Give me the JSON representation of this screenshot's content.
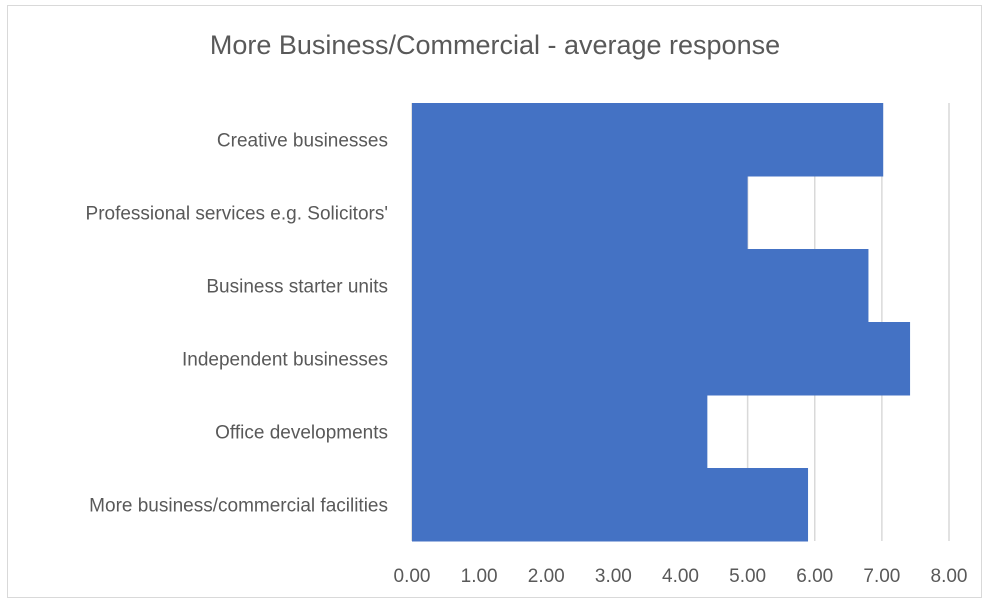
{
  "chart_data": {
    "type": "bar",
    "orientation": "horizontal",
    "title": "More Business/Commercial - average response",
    "categories": [
      "Creative businesses",
      "Professional services e.g. Solicitors'",
      "Business starter units",
      "Independent businesses",
      "Office developments",
      "More business/commercial facilities"
    ],
    "values": [
      7.02,
      5.0,
      6.8,
      7.42,
      4.4,
      5.9
    ],
    "xlim": [
      0,
      8
    ],
    "xticks": [
      "0.00",
      "1.00",
      "2.00",
      "3.00",
      "4.00",
      "5.00",
      "6.00",
      "7.00",
      "8.00"
    ],
    "grid": true,
    "bar_color": "#4472C4",
    "grid_color": "#D9D9D9",
    "xlabel": "",
    "ylabel": ""
  }
}
